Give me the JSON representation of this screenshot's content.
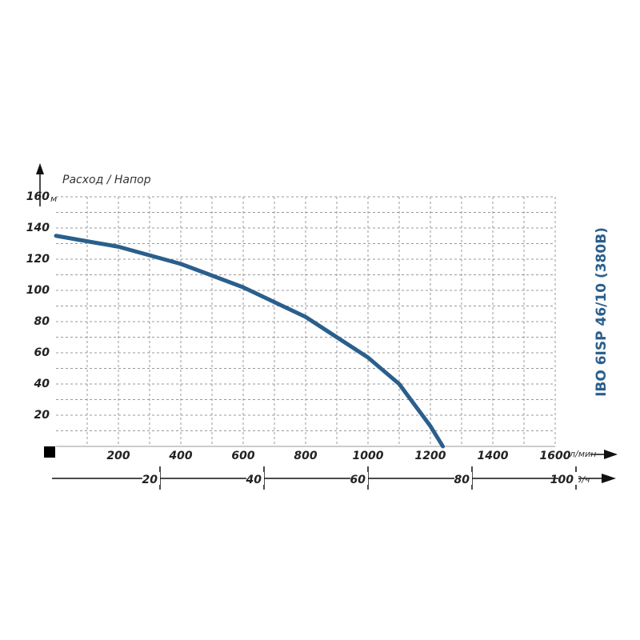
{
  "chart_data": {
    "type": "line",
    "title": "IBO 6ISP 46/10 (380B)",
    "axis_caption": "Расход / Напор",
    "y_unit": "м",
    "x_unit": "л/мин",
    "x2_unit": "м3/ч",
    "x": [
      0,
      200,
      400,
      600,
      800,
      1000,
      1100,
      1200,
      1240
    ],
    "series": [
      {
        "name": "IBO 6ISP 46/10 (380B)",
        "color": "#2a5f8c",
        "values": [
          135,
          128,
          117,
          102,
          83,
          57,
          40,
          13,
          0
        ]
      }
    ],
    "xlim": [
      0,
      1600
    ],
    "xticks": [
      200,
      400,
      600,
      800,
      1000,
      1200,
      1400,
      1600
    ],
    "xgrid": [
      100,
      200,
      300,
      400,
      500,
      600,
      700,
      800,
      900,
      1000,
      1100,
      1200,
      1300,
      1400,
      1500,
      1600
    ],
    "x2lim": [
      0,
      96
    ],
    "x2ticks": [
      20,
      40,
      60,
      80,
      100
    ],
    "ylim": [
      0,
      160
    ],
    "yticks": [
      20,
      40,
      60,
      80,
      100,
      120,
      140,
      160
    ],
    "grid": true
  }
}
